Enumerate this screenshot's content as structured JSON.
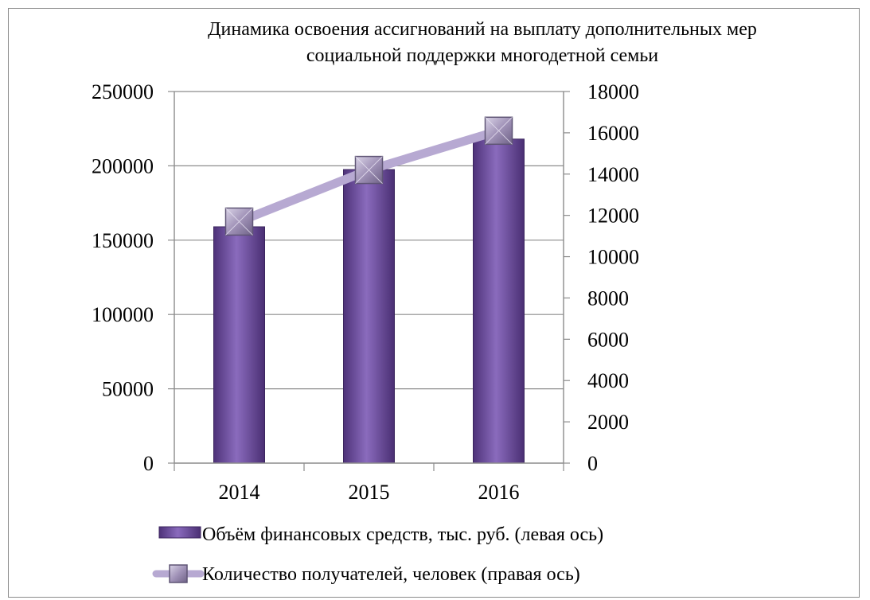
{
  "chart_data": {
    "type": "bar+line",
    "title": "Динамика освоения ассигнований на выплату дополнительных мер социальной поддержки многодетной семьи",
    "title_lines": [
      "Динамика освоения ассигнований на выплату дополнительных мер",
      "социальной поддержки многодетной семьи"
    ],
    "categories": [
      "2014",
      "2015",
      "2016"
    ],
    "series": [
      {
        "name": "Объём финансовых средств, тыс. руб. (левая ось)",
        "type": "bar",
        "axis": "left",
        "values": [
          159000,
          197500,
          218000
        ],
        "color": "#7a5bab"
      },
      {
        "name": "Количество получателей, человек (правая ось)",
        "type": "line",
        "axis": "right",
        "values": [
          11700,
          14200,
          16100
        ],
        "color": "#b7a9d2"
      }
    ],
    "left_axis": {
      "min": 0,
      "max": 250000,
      "ticks": [
        "0",
        "50000",
        "100000",
        "150000",
        "200000",
        "250000"
      ]
    },
    "right_axis": {
      "min": 0,
      "max": 18000,
      "ticks": [
        "0",
        "2000",
        "4000",
        "6000",
        "8000",
        "10000",
        "12000",
        "14000",
        "16000",
        "18000"
      ]
    },
    "grid": true,
    "legend_position": "bottom"
  }
}
